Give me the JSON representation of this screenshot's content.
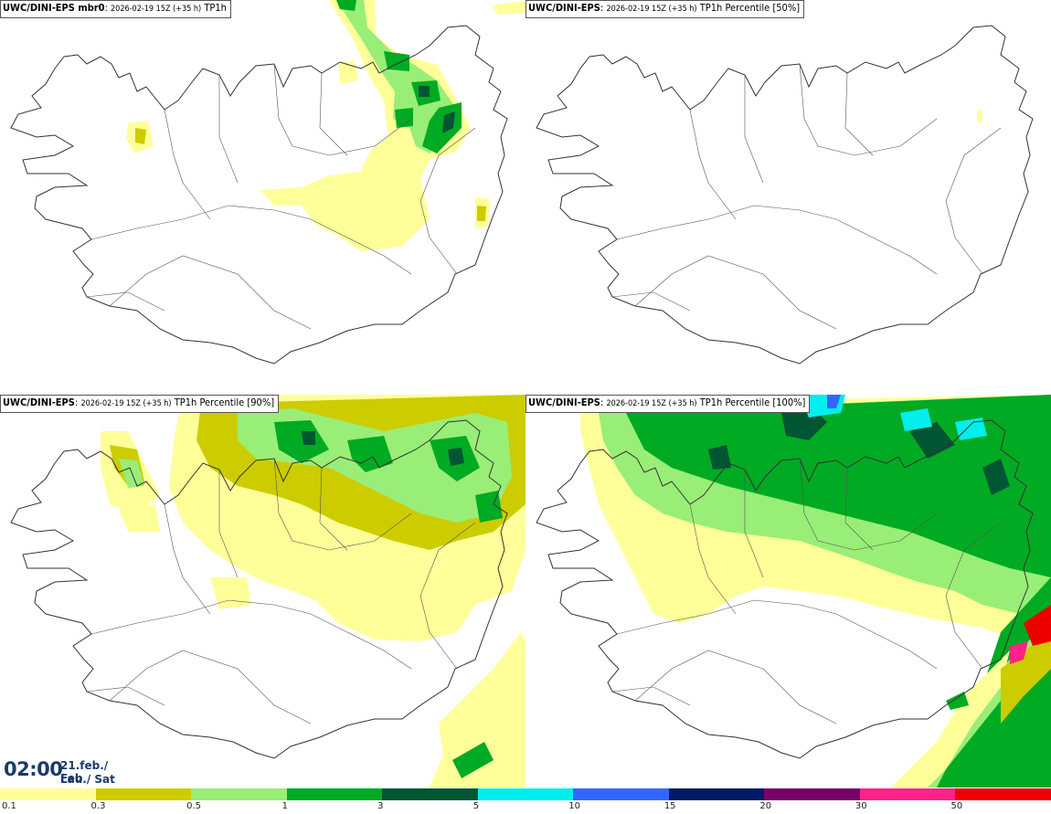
{
  "panels": [
    {
      "model": "UWC/DINI-EPS mbr0",
      "meta": "2026-02-19 15Z (+35 h)",
      "field": "TP1h"
    },
    {
      "model": "UWC/DINI-EPS",
      "meta": "2026-02-19 15Z (+35 h)",
      "field": "TP1h Percentile [50%]"
    },
    {
      "model": "UWC/DINI-EPS",
      "meta": "2026-02-19 15Z (+35 h)",
      "field": "TP1h Percentile [90%]"
    },
    {
      "model": "UWC/DINI-EPS",
      "meta": "2026-02-19 15Z (+35 h)",
      "field": "TP1h Percentile [100%]"
    }
  ],
  "timestamp": {
    "time": "02:00",
    "date_line1": "21.feb./ Feb",
    "date_line2": "Lau./ Sat"
  },
  "legend": {
    "ticks": [
      "0.1",
      "0.3",
      "0.5",
      "1",
      "3",
      "5",
      "10",
      "15",
      "20",
      "30",
      "50"
    ],
    "colors": [
      "#ffff99",
      "#cccc00",
      "#99ee77",
      "#00aa22",
      "#005533",
      "#00eeee",
      "#3366ff",
      "#001a66",
      "#770066",
      "#ff2288",
      "#ee0000"
    ]
  },
  "colors": {
    "coast": "#333333",
    "label_border": "#555555",
    "clock": "#1a3a6a"
  }
}
